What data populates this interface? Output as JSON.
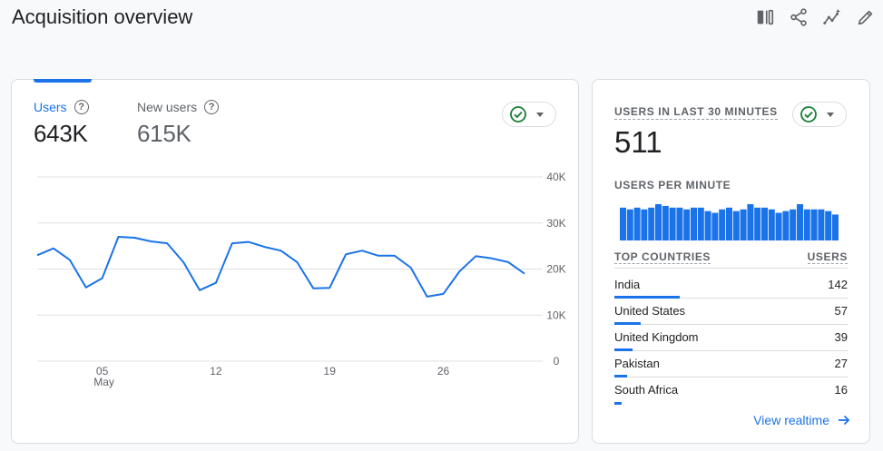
{
  "page": {
    "title": "Acquisition overview"
  },
  "toolbar": {
    "icons": [
      "compare-icon",
      "share-icon",
      "insights-icon",
      "edit-icon"
    ]
  },
  "main_card": {
    "metrics": [
      {
        "label": "Users",
        "value": "643K"
      },
      {
        "label": "New users",
        "value": "615K"
      }
    ],
    "status": "check-circle-icon"
  },
  "chart_data": {
    "type": "line",
    "x_tick_labels": [
      "05",
      "12",
      "19",
      "26"
    ],
    "x_sublabel": "May",
    "y_tick_labels": [
      "40K",
      "30K",
      "20K",
      "10K",
      "0"
    ],
    "ylim": [
      0,
      40000
    ],
    "series": [
      {
        "name": "Users",
        "color": "#1a73e8",
        "values": [
          23000,
          24500,
          22000,
          16000,
          18000,
          27000,
          26800,
          26000,
          25600,
          21500,
          15400,
          17000,
          25600,
          25900,
          24800,
          24000,
          21500,
          15800,
          15900,
          23200,
          24000,
          22900,
          22900,
          20300,
          14000,
          14600,
          19500,
          22800,
          22300,
          21500,
          19000
        ]
      }
    ],
    "grid": true
  },
  "realtime": {
    "title": "USERS IN LAST 30 MINUTES",
    "value": "511",
    "per_minute_label": "USERS PER MINUTE",
    "per_minute_values": [
      19,
      18,
      19,
      18,
      19,
      21,
      20,
      19,
      19,
      18,
      19,
      19,
      17,
      16,
      18,
      19,
      17,
      18,
      21,
      19,
      19,
      18,
      16,
      17,
      18,
      21,
      18,
      18,
      18,
      17,
      15
    ],
    "countries_header": {
      "name": "TOP COUNTRIES",
      "value": "USERS"
    },
    "countries": [
      {
        "name": "India",
        "value": "142",
        "share": 1.0
      },
      {
        "name": "United States",
        "value": "57",
        "share": 0.4
      },
      {
        "name": "United Kingdom",
        "value": "39",
        "share": 0.275
      },
      {
        "name": "Pakistan",
        "value": "27",
        "share": 0.19
      },
      {
        "name": "South Africa",
        "value": "16",
        "share": 0.113
      }
    ],
    "view_realtime": "View realtime"
  },
  "colors": {
    "accent": "#1a73e8",
    "check": "#188038"
  }
}
